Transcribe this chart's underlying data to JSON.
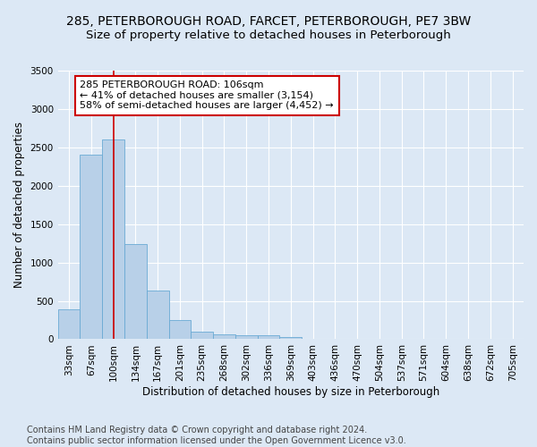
{
  "title_line1": "285, PETERBOROUGH ROAD, FARCET, PETERBOROUGH, PE7 3BW",
  "title_line2": "Size of property relative to detached houses in Peterborough",
  "xlabel": "Distribution of detached houses by size in Peterborough",
  "ylabel": "Number of detached properties",
  "footnote": "Contains HM Land Registry data © Crown copyright and database right 2024.\nContains public sector information licensed under the Open Government Licence v3.0.",
  "bar_labels": [
    "33sqm",
    "67sqm",
    "100sqm",
    "134sqm",
    "167sqm",
    "201sqm",
    "235sqm",
    "268sqm",
    "302sqm",
    "336sqm",
    "369sqm",
    "403sqm",
    "436sqm",
    "470sqm",
    "504sqm",
    "537sqm",
    "571sqm",
    "604sqm",
    "638sqm",
    "672sqm",
    "705sqm"
  ],
  "bar_values": [
    390,
    2400,
    2600,
    1240,
    640,
    250,
    100,
    60,
    55,
    50,
    30,
    0,
    0,
    0,
    0,
    0,
    0,
    0,
    0,
    0,
    0
  ],
  "bar_color": "#b8d0e8",
  "bar_edge_color": "#6aaad4",
  "highlight_line_color": "#cc0000",
  "vline_x": 2,
  "annotation_text": "285 PETERBOROUGH ROAD: 106sqm\n← 41% of detached houses are smaller (3,154)\n58% of semi-detached houses are larger (4,452) →",
  "annotation_box_color": "#ffffff",
  "annotation_box_edge": "#cc0000",
  "ylim": [
    0,
    3500
  ],
  "background_color": "#dce8f5",
  "grid_color": "#ffffff",
  "title_fontsize": 10,
  "subtitle_fontsize": 9.5,
  "axis_label_fontsize": 8.5,
  "tick_fontsize": 7.5,
  "annotation_fontsize": 8,
  "footnote_fontsize": 7
}
